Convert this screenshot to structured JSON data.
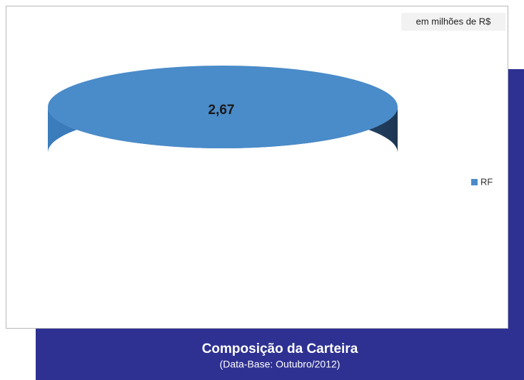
{
  "chart_data": {
    "type": "pie",
    "note": "em milhões de R$",
    "categories": [
      "RF"
    ],
    "values": [
      2.67
    ],
    "value_labels": [
      "2,67"
    ],
    "colors": [
      "#4a8bc9"
    ],
    "legend": "right",
    "title": "Composição da Carteira",
    "subtitle": "(Data-Base: Outubro/2012)"
  }
}
